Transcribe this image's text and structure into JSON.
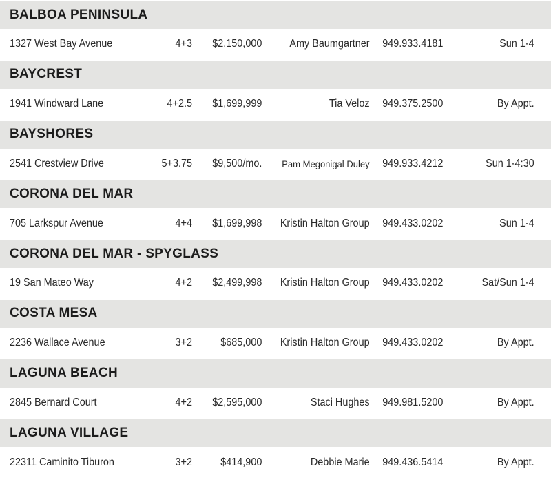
{
  "sections": [
    {
      "name": "BALBOA PENINSULA",
      "listing": {
        "address": "1327 West Bay Avenue",
        "rooms": "4+3",
        "price": "$2,150,000",
        "agent": "Amy Baumgartner",
        "phone": "949.933.4181",
        "hours": "Sun 1-4"
      }
    },
    {
      "name": "BAYCREST",
      "listing": {
        "address": "1941 Windward Lane",
        "rooms": "4+2.5",
        "price": "$1,699,999",
        "agent": "Tia Veloz",
        "phone": "949.375.2500",
        "hours": "By Appt."
      }
    },
    {
      "name": "BAYSHORES",
      "listing": {
        "address": "2541 Crestview Drive",
        "rooms": "5+3.75",
        "price": "$9,500/mo.",
        "agent": "Pam Megonigal Duley",
        "phone": "949.933.4212",
        "hours": "Sun 1-4:30"
      }
    },
    {
      "name": "CORONA DEL MAR",
      "listing": {
        "address": "705 Larkspur Avenue",
        "rooms": "4+4",
        "price": "$1,699,998",
        "agent": "Kristin Halton Group",
        "phone": "949.433.0202",
        "hours": "Sun 1-4"
      }
    },
    {
      "name": "CORONA DEL MAR - SPYGLASS",
      "listing": {
        "address": "19 San Mateo Way",
        "rooms": "4+2",
        "price": "$2,499,998",
        "agent": "Kristin Halton Group",
        "phone": "949.433.0202",
        "hours": "Sat/Sun 1-4"
      }
    },
    {
      "name": "COSTA MESA",
      "listing": {
        "address": "2236 Wallace Avenue",
        "rooms": "3+2",
        "price": "$685,000",
        "agent": "Kristin Halton Group",
        "phone": "949.433.0202",
        "hours": "By Appt."
      }
    },
    {
      "name": "LAGUNA BEACH",
      "listing": {
        "address": "2845 Bernard Court",
        "rooms": "4+2",
        "price": "$2,595,000",
        "agent": "Staci Hughes",
        "phone": "949.981.5200",
        "hours": "By Appt."
      }
    },
    {
      "name": "LAGUNA VILLAGE",
      "listing": {
        "address": "22311 Caminito Tiburon",
        "rooms": "3+2",
        "price": "$414,900",
        "agent": "Debbie Marie",
        "phone": "949.436.5414",
        "hours": "By Appt."
      }
    }
  ]
}
